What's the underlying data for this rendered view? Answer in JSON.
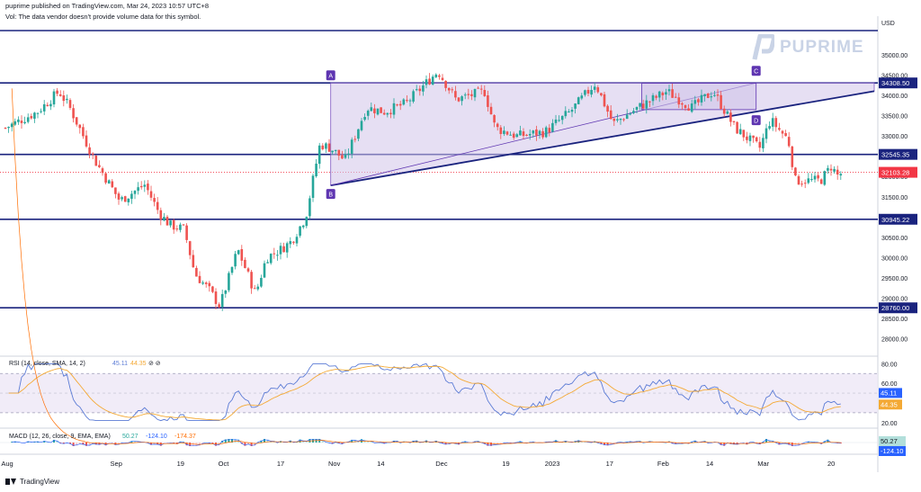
{
  "header": {
    "publisher": "puprime published on TradingView.com, Mar 24, 2023 10:57 UTC+8",
    "vol_note": "Vol: The data vendor doesn't provide volume data for this symbol."
  },
  "brand": {
    "name": "PUPRIME"
  },
  "footer": {
    "logo_text": "TradingView"
  },
  "colors": {
    "level_line": "#1a237e",
    "triangle_fill": "#d1c4e9",
    "up_candle": "#26a69a",
    "down_candle": "#ef5350",
    "rsi_line": "#5b7bd5",
    "rsi_ma": "#f4a934",
    "macd_line": "#2962ff",
    "signal_line": "#ff6d00",
    "label_bg": "#1a237e",
    "price_label_bg": "#f23645",
    "marker_bg": "#5e35b1"
  },
  "chart_data": [
    {
      "type": "candlestick",
      "currency_label": "USD",
      "y_ticks": [
        "35000.00",
        "34500.00",
        "34000.00",
        "33500.00",
        "33000.00",
        "32500.00",
        "32000.00",
        "31500.00",
        "31000.00",
        "30500.00",
        "30000.00",
        "29500.00",
        "29000.00",
        "28500.00",
        "28000.00"
      ],
      "x_ticks": [
        "Aug",
        "Sep",
        "19",
        "Oct",
        "17",
        "Nov",
        "14",
        "Dec",
        "19",
        "2023",
        "17",
        "Feb",
        "14",
        "Mar",
        "20"
      ],
      "ylim": [
        27700,
        35800
      ],
      "levels": [
        {
          "value": 35600,
          "label": ""
        },
        {
          "value": 34308.5,
          "label": "34308.50"
        },
        {
          "value": 32545.35,
          "label": "32545.35"
        },
        {
          "value": 30945.22,
          "label": "30945.22"
        },
        {
          "value": 28760.0,
          "label": "28760.00"
        }
      ],
      "last_price": {
        "value": 32103.28,
        "label": "32103.28"
      },
      "pattern_points": [
        {
          "name": "A",
          "date": "2022-10-31",
          "value": 34308.5
        },
        {
          "name": "B",
          "date": "2022-10-31",
          "value": 31780
        },
        {
          "name": "C",
          "date": "2023-02-27",
          "value": 34308.5
        },
        {
          "name": "D",
          "date": "2023-02-27",
          "value": 33600
        }
      ],
      "close_path": [
        [
          "2022-08-01",
          33200
        ],
        [
          "2022-08-10",
          33600
        ],
        [
          "2022-08-16",
          34100
        ],
        [
          "2022-08-19",
          33700
        ],
        [
          "2022-08-26",
          32400
        ],
        [
          "2022-09-02",
          31400
        ],
        [
          "2022-09-09",
          31800
        ],
        [
          "2022-09-13",
          31100
        ],
        [
          "2022-09-16",
          30800
        ],
        [
          "2022-09-20",
          30700
        ],
        [
          "2022-09-23",
          29600
        ],
        [
          "2022-09-27",
          29200
        ],
        [
          "2022-09-30",
          28800
        ],
        [
          "2022-10-05",
          30200
        ],
        [
          "2022-10-10",
          29100
        ],
        [
          "2022-10-13",
          30000
        ],
        [
          "2022-10-17",
          30200
        ],
        [
          "2022-10-20",
          30400
        ],
        [
          "2022-10-24",
          31000
        ],
        [
          "2022-10-28",
          32800
        ],
        [
          "2022-10-31",
          32700
        ],
        [
          "2022-11-04",
          32400
        ],
        [
          "2022-11-10",
          33700
        ],
        [
          "2022-11-15",
          33600
        ],
        [
          "2022-11-21",
          33800
        ],
        [
          "2022-11-30",
          34600
        ],
        [
          "2022-12-05",
          33900
        ],
        [
          "2022-12-13",
          34100
        ],
        [
          "2022-12-16",
          33200
        ],
        [
          "2022-12-22",
          33000
        ],
        [
          "2022-12-30",
          33100
        ],
        [
          "2023-01-06",
          33600
        ],
        [
          "2023-01-13",
          34300
        ],
        [
          "2023-01-18",
          33300
        ],
        [
          "2023-01-25",
          33700
        ],
        [
          "2023-02-02",
          34100
        ],
        [
          "2023-02-09",
          33700
        ],
        [
          "2023-02-15",
          34100
        ],
        [
          "2023-02-21",
          33200
        ],
        [
          "2023-02-28",
          32700
        ],
        [
          "2023-03-03",
          33400
        ],
        [
          "2023-03-08",
          32900
        ],
        [
          "2023-03-10",
          31900
        ],
        [
          "2023-03-15",
          31900
        ],
        [
          "2023-03-17",
          31900
        ],
        [
          "2023-03-20",
          32250
        ],
        [
          "2023-03-22",
          32000
        ],
        [
          "2023-03-23",
          32103
        ]
      ]
    },
    {
      "type": "line",
      "indicator": "RSI",
      "legend": {
        "label": "RSI (14, close, SMA, 14, 2)",
        "rsi": "45.11",
        "ma": "44.35"
      },
      "y_ticks": [
        "80.00",
        "60.00",
        "40.00",
        "20.00"
      ],
      "ylim": [
        18,
        84
      ],
      "band": [
        30,
        70
      ],
      "value_labels": [
        {
          "value": 45.11,
          "label": "45.11"
        },
        {
          "value": 44.35,
          "label": "44.35"
        }
      ]
    },
    {
      "type": "histogram",
      "indicator": "MACD",
      "legend": {
        "label": "MACD (12, 26, close, 9, EMA, EMA)",
        "hist": "50.27",
        "macd": "-124.10",
        "signal": "-174.37"
      },
      "value_labels": [
        {
          "value": 50.27,
          "label": "50.27"
        },
        {
          "value": -124.1,
          "label": "-124.10"
        }
      ]
    }
  ]
}
